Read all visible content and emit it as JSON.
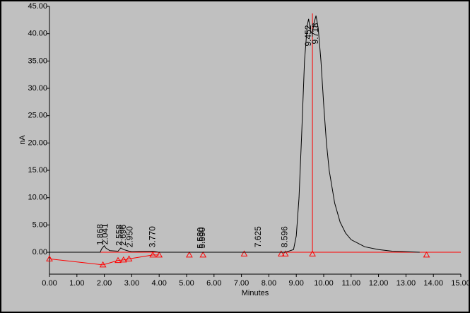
{
  "chart_data": {
    "type": "line",
    "x_label": "Minutes",
    "y_label": "nA",
    "xlim": [
      0,
      15
    ],
    "ylim": [
      -4,
      45
    ],
    "xticks": [
      {
        "value": 0,
        "label": "0.00"
      },
      {
        "value": 1,
        "label": "1.00"
      },
      {
        "value": 2,
        "label": "2.00"
      },
      {
        "value": 3,
        "label": "3.00"
      },
      {
        "value": 4,
        "label": "4.00"
      },
      {
        "value": 5,
        "label": "5.00"
      },
      {
        "value": 6,
        "label": "6.00"
      },
      {
        "value": 7,
        "label": "7.00"
      },
      {
        "value": 8,
        "label": "8.00"
      },
      {
        "value": 9,
        "label": "9.00"
      },
      {
        "value": 10,
        "label": "10.00"
      },
      {
        "value": 11,
        "label": "11.00"
      },
      {
        "value": 12,
        "label": "12.00"
      },
      {
        "value": 13,
        "label": "13.00"
      },
      {
        "value": 14,
        "label": "14.00"
      },
      {
        "value": 15,
        "label": "15.00"
      }
    ],
    "yticks": [
      {
        "value": 0,
        "label": "0.00"
      },
      {
        "value": 5,
        "label": "5.00"
      },
      {
        "value": 10,
        "label": "10.00"
      },
      {
        "value": 15,
        "label": "15.00"
      },
      {
        "value": 20,
        "label": "20.00"
      },
      {
        "value": 25,
        "label": "25.00"
      },
      {
        "value": 30,
        "label": "30.00"
      },
      {
        "value": 35,
        "label": "35.00"
      },
      {
        "value": 40,
        "label": "40.00"
      },
      {
        "value": 45,
        "label": "45.00"
      }
    ],
    "color": "#000000",
    "x": [
      0,
      1.85,
      1.9,
      2.0,
      2.05,
      2.2,
      2.5,
      2.6,
      2.7,
      2.9,
      3.0,
      3.77,
      4.0,
      8.6,
      8.9,
      9.0,
      9.1,
      9.2,
      9.3,
      9.4,
      9.45,
      9.52,
      9.58,
      9.65,
      9.72,
      9.8,
      9.9,
      10.0,
      10.1,
      10.2,
      10.4,
      10.6,
      10.8,
      11.0,
      11.5,
      12.0,
      12.5,
      13.0,
      13.5
    ],
    "values": [
      0,
      0,
      0.6,
      1.2,
      0.8,
      0.3,
      0.2,
      0.8,
      0.5,
      0.2,
      0.1,
      0.2,
      0,
      0,
      0.5,
      3,
      10,
      22,
      35,
      41.5,
      42.7,
      40.5,
      40,
      42,
      43.3,
      41,
      35,
      27,
      20,
      15,
      9,
      5.5,
      3.5,
      2.3,
      1,
      0.5,
      0.2,
      0.1,
      0
    ],
    "reference_line": {
      "y": 0,
      "color": "#ff0000"
    },
    "baseline": {
      "color": "#ff0000",
      "x": [
        0,
        1.95,
        2.5,
        2.7,
        2.9,
        3.77,
        4.0
      ],
      "y": [
        -1.2,
        -2.3,
        -1.5,
        -1.4,
        -1.2,
        -0.5,
        -0.5
      ]
    },
    "markers": {
      "color": "#ff0000",
      "x": [
        0,
        1.95,
        2.5,
        2.7,
        2.9,
        3.77,
        4.0,
        5.1,
        5.6,
        7.1,
        8.45,
        8.6,
        9.59,
        13.75
      ],
      "y": [
        -1.2,
        -2.3,
        -1.5,
        -1.4,
        -1.2,
        -0.5,
        -0.5,
        -0.5,
        -0.5,
        -0.3,
        -0.3,
        -0.3,
        -0.3,
        -0.5
      ]
    },
    "split_line": {
      "x": 9.59,
      "color": "#ff0000"
    },
    "peaks": {
      "x": [
        1.868,
        2.041,
        2.558,
        2.696,
        2.95,
        3.77,
        5.53,
        5.59,
        7.625,
        8.596,
        9.452,
        9.718
      ],
      "labels": [
        "1.868",
        "2.041",
        "2.558",
        "2.696",
        "2.950",
        "3.770",
        "5.530",
        "5.590",
        "7.625",
        "8.596",
        "9.452",
        "9.718"
      ],
      "y": [
        0.9,
        1.0,
        0.8,
        0.8,
        0.5,
        0.5,
        0.3,
        0.3,
        0.5,
        0.5,
        37.3,
        37.7
      ]
    }
  }
}
